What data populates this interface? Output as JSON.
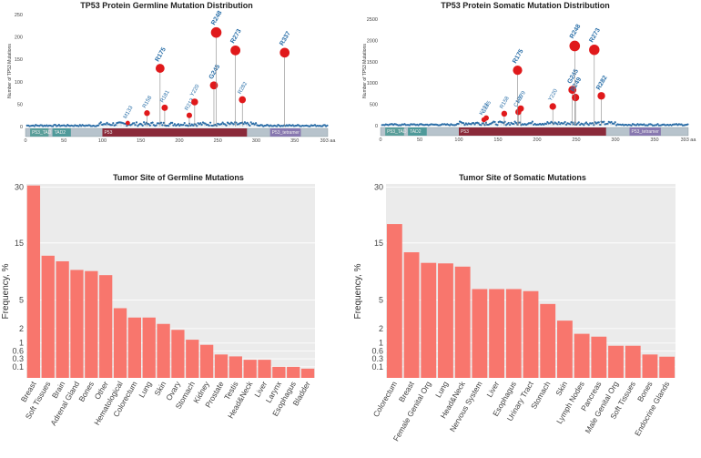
{
  "colors": {
    "bar": "#f8766d",
    "panel_bg": "#ebebeb",
    "grid": "#ffffff",
    "hotspot": "#e0191b",
    "lollipop": "#2c6ea7",
    "label": "#2a6fa8",
    "domain_TAD1": "#5a9e9a",
    "domain_TAD2": "#4f9a9a",
    "domain_P53": "#8a2a3a",
    "domain_tetramer": "#8878b0",
    "domain_base": "#b7c3cc"
  },
  "chart_data": [
    {
      "type": "scatter",
      "title": "TP53 Protein Germline Mutation Distribution",
      "ylabel": "Number of TP53 Mutations",
      "xlabel": "",
      "ylim": [
        0,
        250
      ],
      "y_ticks": [
        0,
        50,
        100,
        150,
        200,
        250
      ],
      "x_ticks": [
        0,
        50,
        100,
        150,
        200,
        250,
        300,
        350,
        393
      ],
      "x_tick_labels": [
        "0",
        "50",
        "100",
        "150",
        "200",
        "250",
        "300",
        "350",
        "393 aa"
      ],
      "hotspots": [
        {
          "label": "M133",
          "x": 133,
          "y": 8
        },
        {
          "label": "R158",
          "x": 158,
          "y": 30
        },
        {
          "label": "R175",
          "x": 175,
          "y": 130
        },
        {
          "label": "R181",
          "x": 181,
          "y": 42
        },
        {
          "label": "R213",
          "x": 213,
          "y": 25
        },
        {
          "label": "Y220",
          "x": 220,
          "y": 55
        },
        {
          "label": "G245",
          "x": 245,
          "y": 92
        },
        {
          "label": "R248",
          "x": 248,
          "y": 210
        },
        {
          "label": "R273",
          "x": 273,
          "y": 170
        },
        {
          "label": "R282",
          "x": 282,
          "y": 60
        },
        {
          "label": "R337",
          "x": 337,
          "y": 165
        }
      ],
      "domains": [
        {
          "name": "P53_TAD",
          "start": 6,
          "end": 30
        },
        {
          "name": "TAD2",
          "start": 35,
          "end": 59
        },
        {
          "name": "P53",
          "start": 100,
          "end": 288
        },
        {
          "name": "P53_tetramer",
          "start": 318,
          "end": 358
        }
      ]
    },
    {
      "type": "scatter",
      "title": "TP53 Protein Somatic Mutation Distribution",
      "ylabel": "Number of TP53 Mutations",
      "xlabel": "",
      "ylim": [
        0,
        2500
      ],
      "y_ticks": [
        0,
        500,
        1000,
        1500,
        2000,
        2500
      ],
      "x_ticks": [
        0,
        50,
        100,
        150,
        200,
        250,
        300,
        350,
        393
      ],
      "x_tick_labels": [
        "0",
        "50",
        "100",
        "150",
        "200",
        "250",
        "300",
        "350",
        "393 aa"
      ],
      "hotspots": [
        {
          "label": "C135",
          "x": 135,
          "y": 180
        },
        {
          "label": "K132",
          "x": 132,
          "y": 140
        },
        {
          "label": "R158",
          "x": 158,
          "y": 280
        },
        {
          "label": "H179",
          "x": 179,
          "y": 400
        },
        {
          "label": "C176",
          "x": 176,
          "y": 320
        },
        {
          "label": "R175",
          "x": 175,
          "y": 1300
        },
        {
          "label": "Y220",
          "x": 220,
          "y": 450
        },
        {
          "label": "G245",
          "x": 245,
          "y": 840
        },
        {
          "label": "R249",
          "x": 249,
          "y": 660
        },
        {
          "label": "R248",
          "x": 248,
          "y": 1870
        },
        {
          "label": "R273",
          "x": 273,
          "y": 1780
        },
        {
          "label": "R282",
          "x": 282,
          "y": 700
        }
      ],
      "domains": [
        {
          "name": "P53_TAD",
          "start": 6,
          "end": 30
        },
        {
          "name": "TAD2",
          "start": 35,
          "end": 59
        },
        {
          "name": "P53",
          "start": 100,
          "end": 288
        },
        {
          "name": "P53_tetramer",
          "start": 318,
          "end": 358
        }
      ]
    },
    {
      "type": "bar",
      "title": "Tumor Site of Germline Mutations",
      "ylabel": "Frequency, %",
      "xlabel": "",
      "y_scale": "sqrt",
      "ylim": [
        0,
        31
      ],
      "y_ticks": [
        0.1,
        0.3,
        0.6,
        1,
        2,
        5,
        15,
        30
      ],
      "categories": [
        "Breast",
        "Soft Tissues",
        "Brain",
        "Adrenal Gland",
        "Bones",
        "Other",
        "Hematological",
        "Colorectum",
        "Lung",
        "Skin",
        "Ovary",
        "Stomach",
        "Kidney",
        "Prostate",
        "Testis",
        "Head&Neck",
        "Liver",
        "Larynx",
        "Esophagus",
        "Bladder"
      ],
      "values": [
        30.5,
        12.3,
        11.2,
        9.6,
        9.4,
        8.7,
        4.0,
        3.0,
        3.0,
        2.4,
        1.9,
        1.2,
        0.9,
        0.45,
        0.38,
        0.27,
        0.27,
        0.1,
        0.1,
        0.07
      ]
    },
    {
      "type": "bar",
      "title": "Tumor Site of Somatic Mutations",
      "ylabel": "Frequency, %",
      "xlabel": "",
      "y_scale": "sqrt",
      "ylim": [
        0,
        31
      ],
      "y_ticks": [
        0.1,
        0.3,
        0.6,
        1,
        2,
        5,
        15,
        30
      ],
      "categories": [
        "Colorectum",
        "Breast",
        "Female Genital Org",
        "Lung",
        "Head&Neck",
        "Nervous System",
        "Liver",
        "Esophagus",
        "Urinary Tract",
        "Stomach",
        "Skin",
        "Lymph Nodes",
        "Pancreas",
        "Male Genital Org",
        "Soft Tissues",
        "Bones",
        "Endocrine Glands"
      ],
      "values": [
        19.5,
        13.0,
        10.9,
        10.8,
        10.2,
        6.5,
        6.5,
        6.5,
        6.2,
        4.5,
        2.7,
        1.6,
        1.4,
        0.85,
        0.85,
        0.45,
        0.37
      ]
    }
  ]
}
